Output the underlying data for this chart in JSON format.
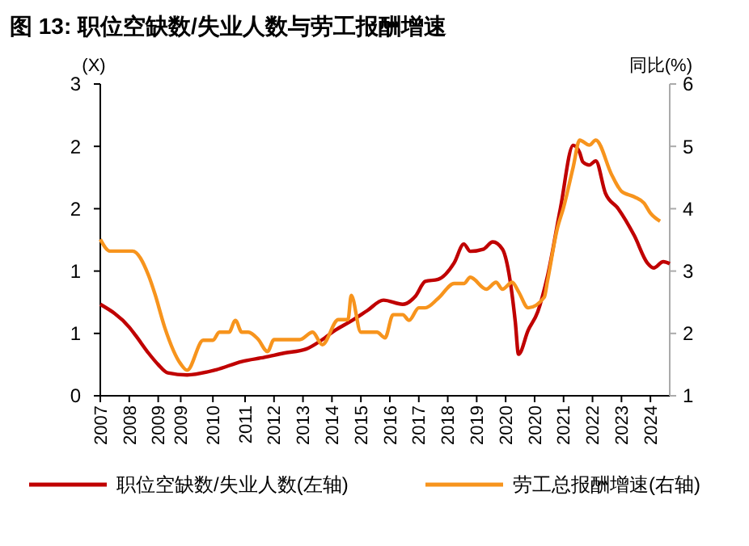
{
  "chart_data": {
    "type": "line",
    "title": "图 13: 职位空缺数/失业人数与劳工报酬增速",
    "ylabel": "(X)",
    "y2label": "同比(%)",
    "legend": "bottom",
    "xlim": [
      2007,
      2024.7
    ],
    "xticks": [
      {
        "value": 2007,
        "label": "2007"
      },
      {
        "value": 2007.9,
        "label": "2008"
      },
      {
        "value": 2008.8,
        "label": "2009"
      },
      {
        "value": 2009.5,
        "label": "2009"
      },
      {
        "value": 2010.5,
        "label": "2010"
      },
      {
        "value": 2011.5,
        "label": "2011"
      },
      {
        "value": 2012.4,
        "label": "2012"
      },
      {
        "value": 2013.3,
        "label": "2013"
      },
      {
        "value": 2014.2,
        "label": "2014"
      },
      {
        "value": 2015.1,
        "label": "2015"
      },
      {
        "value": 2016,
        "label": "2016"
      },
      {
        "value": 2016.9,
        "label": "2017"
      },
      {
        "value": 2017.8,
        "label": "2018"
      },
      {
        "value": 2018.7,
        "label": "2019"
      },
      {
        "value": 2019.6,
        "label": "2020"
      },
      {
        "value": 2020.5,
        "label": "2020"
      },
      {
        "value": 2021.4,
        "label": "2021"
      },
      {
        "value": 2022.3,
        "label": "2022"
      },
      {
        "value": 2023.2,
        "label": "2023"
      },
      {
        "value": 2024.1,
        "label": "2024"
      }
    ],
    "ylim": [
      0,
      3
    ],
    "yticks": [
      0,
      {
        "value": 0.6,
        "label": "1"
      },
      {
        "value": 1.2,
        "label": "1"
      },
      {
        "value": 1.8,
        "label": "2"
      },
      {
        "value": 2.4,
        "label": "2"
      },
      3
    ],
    "y2lim": [
      1,
      6
    ],
    "y2ticks": [
      1,
      2,
      3,
      4,
      5,
      6
    ],
    "series": [
      {
        "name": "职位空缺数/失业人数(左轴)",
        "color": "#c00000",
        "x": [
          2007,
          2007.9,
          2008.1,
          2008.5,
          2008.8,
          2009.1,
          2009.7,
          2010.6,
          2011.4,
          2012.1,
          2012.7,
          2013.4,
          2013.9,
          2014.3,
          2014.8,
          2015.3,
          2015.8,
          2016.4,
          2016.8,
          2017.1,
          2017.5,
          2018.0,
          2018.3,
          2018.5,
          2018.9,
          2019.2,
          2019.5,
          2019.7,
          2019.9,
          2020.0,
          2020.3,
          2020.6,
          2020.9,
          2021.3,
          2021.7,
          2021.9,
          2022.0,
          2022.2,
          2022.4,
          2022.7,
          2023.1,
          2023.6,
          2024.0,
          2024.2,
          2024.5,
          2024.7
        ],
        "values": [
          0.88,
          0.66,
          0.58,
          0.41,
          0.3,
          0.22,
          0.2,
          0.25,
          0.33,
          0.37,
          0.41,
          0.45,
          0.54,
          0.63,
          0.72,
          0.82,
          0.92,
          0.88,
          0.96,
          1.1,
          1.12,
          1.28,
          1.46,
          1.39,
          1.41,
          1.48,
          1.41,
          1.18,
          0.71,
          0.4,
          0.63,
          0.81,
          1.15,
          1.8,
          2.41,
          2.34,
          2.25,
          2.22,
          2.26,
          1.95,
          1.8,
          1.54,
          1.28,
          1.23,
          1.29,
          1.27
        ]
      },
      {
        "name": "劳工总报酬增速(右轴)",
        "color": "#f7941d",
        "axis": "y2",
        "x": [
          2007,
          2007.3,
          2008.0,
          2008.5,
          2008.7,
          2009.0,
          2009.5,
          2009.7,
          2010.2,
          2010.5,
          2010.7,
          2011.0,
          2011.2,
          2011.4,
          2011.6,
          2011.9,
          2012.2,
          2012.4,
          2013.2,
          2013.6,
          2013.9,
          2014.4,
          2014.7,
          2014.8,
          2015.1,
          2015.6,
          2015.85,
          2016.1,
          2016.4,
          2016.6,
          2016.9,
          2017.1,
          2017.5,
          2018.0,
          2018.3,
          2018.5,
          2019.0,
          2019.3,
          2019.5,
          2019.8,
          2020.0,
          2020.3,
          2020.8,
          2020.9,
          2021.2,
          2021.4,
          2021.7,
          2021.9,
          2022.2,
          2022.4,
          2022.9,
          2023.2,
          2023.6,
          2023.9,
          2024.1,
          2024.4
        ],
        "values": [
          3.51,
          3.32,
          3.32,
          2.93,
          2.63,
          2.1,
          1.51,
          1.41,
          1.89,
          1.89,
          2.02,
          2.02,
          2.21,
          2.02,
          2.02,
          1.91,
          1.71,
          1.9,
          1.9,
          2.02,
          1.82,
          2.22,
          2.22,
          2.61,
          2.02,
          2.02,
          1.93,
          2.3,
          2.3,
          2.21,
          2.41,
          2.41,
          2.56,
          2.8,
          2.8,
          2.9,
          2.71,
          2.82,
          2.71,
          2.82,
          2.67,
          2.41,
          2.58,
          2.84,
          3.67,
          4.02,
          4.67,
          5.1,
          5.02,
          5.1,
          4.54,
          4.28,
          4.19,
          4.09,
          3.93,
          3.8
        ]
      }
    ]
  }
}
